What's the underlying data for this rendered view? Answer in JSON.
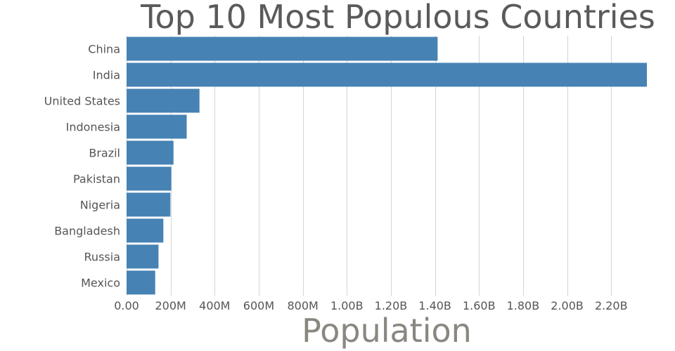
{
  "chart_data": {
    "type": "bar",
    "orientation": "horizontal",
    "title": "Top 10 Most Populous Countries",
    "xlabel": "Population",
    "ylabel": "",
    "categories": [
      "China",
      "India",
      "United States",
      "Indonesia",
      "Brazil",
      "Pakistan",
      "Nigeria",
      "Bangladesh",
      "Russia",
      "Mexico"
    ],
    "values": [
      1412000000,
      2362000000,
      331000000,
      273000000,
      213000000,
      203000000,
      199000000,
      167000000,
      145000000,
      130000000
    ],
    "xlim": [
      0,
      2362000000
    ],
    "x_ticks": [
      {
        "value": 0,
        "label": "0.00"
      },
      {
        "value": 200000000,
        "label": "200M"
      },
      {
        "value": 400000000,
        "label": "400M"
      },
      {
        "value": 600000000,
        "label": "600M"
      },
      {
        "value": 800000000,
        "label": "800M"
      },
      {
        "value": 1000000000,
        "label": "1.00B"
      },
      {
        "value": 1200000000,
        "label": "1.20B"
      },
      {
        "value": 1400000000,
        "label": "1.40B"
      },
      {
        "value": 1600000000,
        "label": "1.60B"
      },
      {
        "value": 1800000000,
        "label": "1.80B"
      },
      {
        "value": 2000000000,
        "label": "2.00B"
      },
      {
        "value": 2200000000,
        "label": "2.20B"
      }
    ],
    "grid": "vertical",
    "bar_color": "#4682b4"
  }
}
